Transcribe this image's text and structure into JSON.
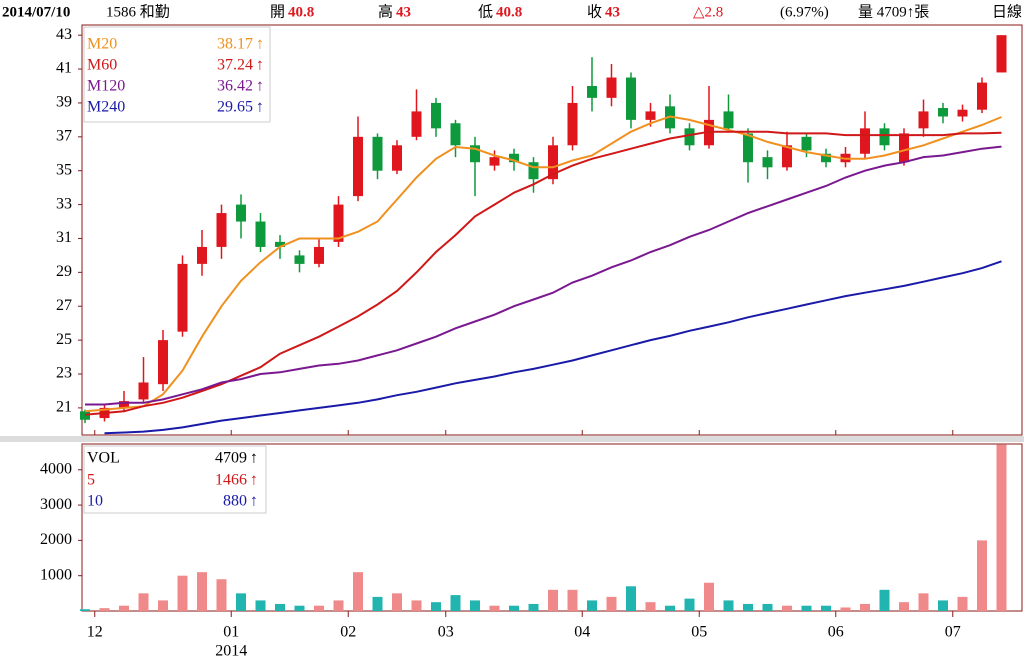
{
  "header": {
    "date": "2014/07/10",
    "stock": "1586 和勤",
    "fields": [
      {
        "label": "開",
        "value": "40.8"
      },
      {
        "label": "高",
        "value": "43"
      },
      {
        "label": "低",
        "value": "40.8"
      },
      {
        "label": "收",
        "value": "43"
      }
    ],
    "change": "△2.8",
    "change_pct": "(6.97%)",
    "volume": "量 4709↑張",
    "period": "日線"
  },
  "chart_data": [
    {
      "type": "candlestick",
      "up_color": "#e0161e",
      "down_color": "#0e9a3c",
      "trend": "↑",
      "ylim": [
        19.4,
        43.6
      ],
      "yticks": [
        21,
        23,
        25,
        27,
        29,
        31,
        33,
        35,
        37,
        39,
        41,
        43
      ],
      "categories": [
        null,
        "12",
        null,
        null,
        null,
        null,
        null,
        null,
        "01",
        null,
        null,
        null,
        null,
        null,
        "02",
        null,
        null,
        null,
        null,
        "03",
        null,
        null,
        null,
        null,
        null,
        null,
        "04",
        null,
        null,
        null,
        null,
        null,
        "05",
        null,
        null,
        null,
        null,
        null,
        null,
        "06",
        null,
        null,
        null,
        null,
        null,
        "07",
        null,
        null
      ],
      "year": "2014",
      "candles": [
        [
          20.8,
          20.9,
          20.1,
          20.3
        ],
        [
          20.4,
          21.2,
          20.2,
          21.0
        ],
        [
          21.0,
          22.0,
          20.8,
          21.4
        ],
        [
          21.5,
          24.0,
          21.3,
          22.5
        ],
        [
          22.4,
          25.6,
          22.0,
          25.0
        ],
        [
          25.5,
          30.0,
          25.2,
          29.5
        ],
        [
          29.5,
          31.5,
          28.8,
          30.5
        ],
        [
          30.5,
          33.0,
          29.8,
          32.5
        ],
        [
          33.0,
          33.6,
          31.0,
          32.0
        ],
        [
          32.0,
          32.5,
          30.2,
          30.5
        ],
        [
          30.8,
          31.2,
          29.8,
          30.5
        ],
        [
          30.0,
          30.3,
          29.0,
          29.5
        ],
        [
          29.5,
          31.0,
          29.3,
          30.5
        ],
        [
          30.8,
          33.5,
          30.5,
          33.0
        ],
        [
          33.5,
          38.2,
          33.2,
          37.0
        ],
        [
          37.0,
          37.2,
          34.5,
          35.0
        ],
        [
          35.0,
          36.8,
          34.8,
          36.5
        ],
        [
          37.0,
          39.8,
          36.8,
          38.5
        ],
        [
          39.0,
          39.3,
          37.0,
          37.5
        ],
        [
          37.8,
          38.0,
          35.8,
          36.5
        ],
        [
          36.5,
          37.0,
          33.5,
          35.5
        ],
        [
          35.3,
          36.2,
          35.0,
          35.8
        ],
        [
          36.0,
          36.3,
          35.0,
          35.5
        ],
        [
          35.5,
          35.8,
          33.7,
          34.5
        ],
        [
          34.5,
          37.0,
          34.2,
          36.5
        ],
        [
          36.5,
          40.0,
          36.2,
          39.0
        ],
        [
          40.0,
          41.7,
          38.5,
          39.3
        ],
        [
          39.3,
          41.3,
          38.8,
          40.5
        ],
        [
          40.5,
          40.8,
          37.5,
          38.0
        ],
        [
          38.0,
          39.0,
          37.6,
          38.5
        ],
        [
          38.8,
          39.5,
          37.2,
          37.5
        ],
        [
          37.5,
          37.8,
          36.2,
          36.5
        ],
        [
          36.5,
          40.0,
          36.3,
          38.0
        ],
        [
          38.5,
          39.5,
          37.3,
          37.5
        ],
        [
          37.2,
          37.5,
          34.3,
          35.5
        ],
        [
          35.8,
          36.2,
          34.5,
          35.2
        ],
        [
          35.2,
          37.3,
          35.0,
          36.5
        ],
        [
          37.0,
          37.2,
          35.8,
          36.2
        ],
        [
          36.0,
          36.3,
          35.2,
          35.5
        ],
        [
          35.5,
          36.4,
          35.2,
          36.0
        ],
        [
          36.0,
          38.5,
          35.7,
          37.5
        ],
        [
          37.5,
          37.8,
          36.2,
          36.5
        ],
        [
          35.5,
          37.5,
          35.3,
          37.2
        ],
        [
          37.5,
          39.2,
          37.0,
          38.5
        ],
        [
          38.7,
          39.0,
          37.8,
          38.2
        ],
        [
          38.2,
          38.9,
          37.9,
          38.6
        ],
        [
          38.6,
          40.5,
          38.4,
          40.2
        ],
        [
          40.8,
          43,
          40.8,
          43
        ]
      ],
      "series": [
        {
          "name": "M20",
          "color": "#f0901e",
          "values": [
            20.8,
            20.9,
            21.0,
            21.1,
            21.8,
            23.2,
            25.2,
            27,
            28.5,
            29.6,
            30.5,
            31,
            31,
            31,
            31.4,
            32,
            33.3,
            34.6,
            35.7,
            36.4,
            36.3,
            35.9,
            35.6,
            35.2,
            35.2,
            35.6,
            35.9,
            36.6,
            37.3,
            37.8,
            38.2,
            38,
            37.7,
            37.4,
            37.1,
            36.7,
            36.4,
            36.1,
            35.9,
            35.7,
            35.7,
            35.9,
            36.2,
            36.5,
            36.9,
            37.3,
            37.7,
            38.17
          ]
        },
        {
          "name": "M60",
          "color": "#d01818",
          "values": [
            20.6,
            20.7,
            20.8,
            21.1,
            21.3,
            21.6,
            22,
            22.4,
            22.9,
            23.4,
            24.2,
            24.7,
            25.2,
            25.8,
            26.4,
            27.1,
            27.9,
            29,
            30.2,
            31.2,
            32.3,
            33,
            33.7,
            34.2,
            34.8,
            35.3,
            35.7,
            36,
            36.3,
            36.6,
            36.9,
            37.1,
            37.3,
            37.3,
            37.3,
            37.3,
            37.2,
            37.2,
            37.2,
            37.1,
            37.1,
            37.1,
            37.1,
            37.1,
            37.1,
            37.2,
            37.2,
            37.24
          ]
        },
        {
          "name": "M120",
          "color": "#7a1890",
          "values": [
            21.2,
            21.2,
            21.3,
            21.3,
            21.5,
            21.8,
            22.1,
            22.5,
            22.7,
            23,
            23.1,
            23.3,
            23.5,
            23.6,
            23.8,
            24.1,
            24.4,
            24.8,
            25.2,
            25.7,
            26.1,
            26.5,
            27,
            27.4,
            27.8,
            28.4,
            28.8,
            29.3,
            29.7,
            30.2,
            30.6,
            31.1,
            31.5,
            32,
            32.5,
            32.9,
            33.3,
            33.7,
            34.1,
            34.6,
            35,
            35.3,
            35.5,
            35.8,
            35.9,
            36.1,
            36.3,
            36.42
          ]
        },
        {
          "name": "M240",
          "color": "#1a1aa8",
          "values": [
            null,
            19.5,
            19.55,
            19.6,
            19.7,
            19.85,
            20.05,
            20.25,
            20.4,
            20.55,
            20.7,
            20.85,
            21,
            21.15,
            21.3,
            21.5,
            21.75,
            21.95,
            22.2,
            22.45,
            22.65,
            22.85,
            23.1,
            23.3,
            23.55,
            23.8,
            24.1,
            24.4,
            24.7,
            25,
            25.25,
            25.55,
            25.8,
            26.05,
            26.35,
            26.6,
            26.85,
            27.1,
            27.35,
            27.6,
            27.8,
            28,
            28.2,
            28.45,
            28.7,
            28.95,
            29.25,
            29.65
          ]
        }
      ]
    },
    {
      "type": "bar",
      "name": "VOL",
      "trend": "↑",
      "up_color": "#f08a8a",
      "down_color": "#22b5b0",
      "ylim": [
        0,
        4730
      ],
      "yticks": [
        1000,
        2000,
        3000,
        4000
      ],
      "values": [
        50,
        80,
        150,
        500,
        300,
        1000,
        1100,
        900,
        500,
        300,
        200,
        150,
        150,
        300,
        1100,
        400,
        500,
        300,
        250,
        450,
        300,
        150,
        150,
        200,
        600,
        600,
        300,
        400,
        700,
        250,
        150,
        350,
        800,
        300,
        200,
        200,
        150,
        150,
        150,
        100,
        200,
        600,
        250,
        500,
        300,
        400,
        2000,
        4709
      ],
      "averages": [
        {
          "name": "5",
          "value": 1466,
          "color": "#d01818"
        },
        {
          "name": "10",
          "value": 880,
          "color": "#1a1aa8"
        }
      ]
    }
  ]
}
